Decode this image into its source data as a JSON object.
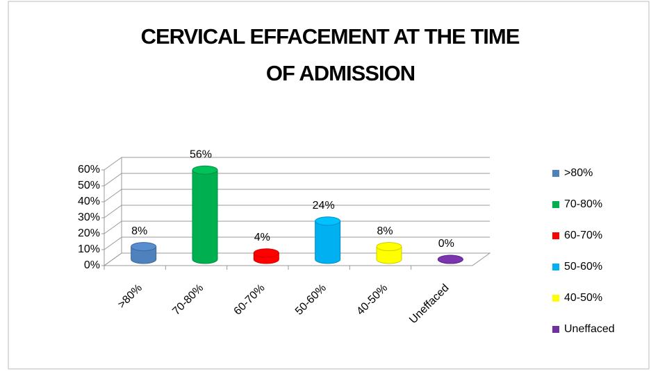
{
  "chart_data": {
    "type": "bar3d",
    "title": [
      "CERVICAL EFFACEMENT AT THE TIME",
      "OF ADMISSION"
    ],
    "categories": [
      ">80%",
      "70-80%",
      "60-70%",
      "50-60%",
      "40-50%",
      "Uneffaced"
    ],
    "values": [
      8,
      56,
      4,
      24,
      8,
      0
    ],
    "value_labels": [
      "8%",
      "56%",
      "4%",
      "24%",
      "8%",
      "0%"
    ],
    "colors": [
      "#4f81bd",
      "#00b050",
      "#ff0000",
      "#00b0f0",
      "#ffff00",
      "#7030a0"
    ],
    "ylim": [
      0,
      60
    ],
    "yticks": [
      {
        "value": 0,
        "label": "0%"
      },
      {
        "value": 10,
        "label": "10%"
      },
      {
        "value": 20,
        "label": "20%"
      },
      {
        "value": 30,
        "label": "30%"
      },
      {
        "value": 40,
        "label": "40%"
      },
      {
        "value": 50,
        "label": "50%"
      },
      {
        "value": 60,
        "label": "60%"
      }
    ],
    "grid": true,
    "legend": "right"
  }
}
